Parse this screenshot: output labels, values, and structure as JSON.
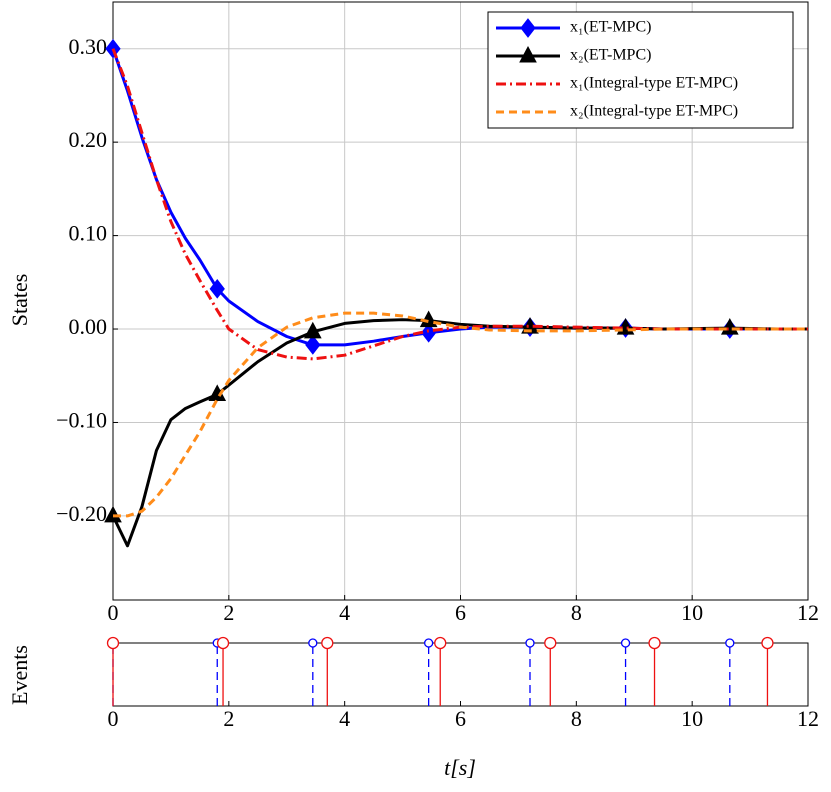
{
  "chart_data": [
    {
      "type": "line",
      "ylabel": "States",
      "x": [
        0,
        0.25,
        0.5,
        0.75,
        1,
        1.25,
        1.5,
        1.8,
        2,
        2.5,
        3,
        3.45,
        4,
        4.5,
        5,
        5.45,
        6,
        6.5,
        7.2,
        8,
        8.85,
        9.5,
        10.65,
        11.5,
        12
      ],
      "series": [
        {
          "name": "x₁(ET-MPC)",
          "color": "#0000ff",
          "linestyle": "solid",
          "marker": "diamond",
          "values": [
            0.3,
            0.255,
            0.205,
            0.16,
            0.125,
            0.097,
            0.074,
            0.043,
            0.03,
            0.008,
            -0.008,
            -0.017,
            -0.017,
            -0.013,
            -0.008,
            -0.004,
            0.0,
            0.002,
            0.002,
            0.001,
            0.001,
            0.0,
            0.0,
            0.0,
            0.0
          ]
        },
        {
          "name": "x₂(ET-MPC)",
          "color": "#000000",
          "linestyle": "solid",
          "marker": "triangle",
          "values": [
            -0.2,
            -0.232,
            -0.19,
            -0.13,
            -0.097,
            -0.085,
            -0.078,
            -0.07,
            -0.06,
            -0.035,
            -0.015,
            -0.003,
            0.006,
            0.009,
            0.01,
            0.009,
            0.005,
            0.003,
            0.002,
            0.001,
            0.001,
            0.0,
            0.001,
            0.0,
            0.0
          ]
        },
        {
          "name": "x₁(Integral-type ET-MPC)",
          "color": "#ee1111",
          "linestyle": "dashdot",
          "values": [
            0.3,
            0.26,
            0.21,
            0.16,
            0.115,
            0.08,
            0.052,
            0.02,
            0.0,
            -0.022,
            -0.03,
            -0.032,
            -0.028,
            -0.018,
            -0.008,
            -0.002,
            0.002,
            0.003,
            0.003,
            0.002,
            0.001,
            0.0,
            0.0,
            0.0,
            0.0
          ]
        },
        {
          "name": "x₂(Integral-type ET-MPC)",
          "color": "#ff8c1a",
          "linestyle": "dashed",
          "values": [
            -0.2,
            -0.2,
            -0.195,
            -0.18,
            -0.16,
            -0.135,
            -0.11,
            -0.075,
            -0.055,
            -0.02,
            0.002,
            0.012,
            0.017,
            0.017,
            0.014,
            0.008,
            0.002,
            -0.001,
            -0.002,
            -0.002,
            -0.001,
            0.0,
            0.0,
            0.0,
            0.0
          ]
        }
      ],
      "xlim": [
        0,
        12
      ],
      "xticks": [
        0,
        2,
        4,
        6,
        8,
        10,
        12
      ],
      "ylim": [
        -0.29,
        0.35
      ],
      "yticks": [
        {
          "value": -0.2,
          "label": "−0.20"
        },
        {
          "value": -0.1,
          "label": "−0.10"
        },
        {
          "value": 0,
          "label": "0.00"
        },
        {
          "value": 0.1,
          "label": "0.10"
        },
        {
          "value": 0.2,
          "label": "0.20"
        },
        {
          "value": 0.3,
          "label": "0.30"
        }
      ],
      "grid": true,
      "legend": "upper right"
    },
    {
      "type": "stem",
      "ylabel": "Events",
      "xlabel": "t[s]",
      "series": [
        {
          "color": "#0000ff",
          "linestyle": "dashed",
          "x": [
            0,
            1.8,
            3.45,
            5.45,
            7.2,
            8.85,
            10.65
          ],
          "values": [
            1,
            1,
            1,
            1,
            1,
            1,
            1
          ]
        },
        {
          "color": "#ee1111",
          "linestyle": "solid",
          "x": [
            0,
            1.9,
            3.7,
            5.65,
            7.55,
            9.35,
            11.3
          ],
          "values": [
            1,
            1,
            1,
            1,
            1,
            1,
            1
          ]
        }
      ],
      "xlim": [
        0,
        12
      ],
      "xticks": [
        0,
        2,
        4,
        6,
        8,
        10,
        12
      ],
      "ylim": [
        0,
        1
      ],
      "grid": false
    }
  ]
}
